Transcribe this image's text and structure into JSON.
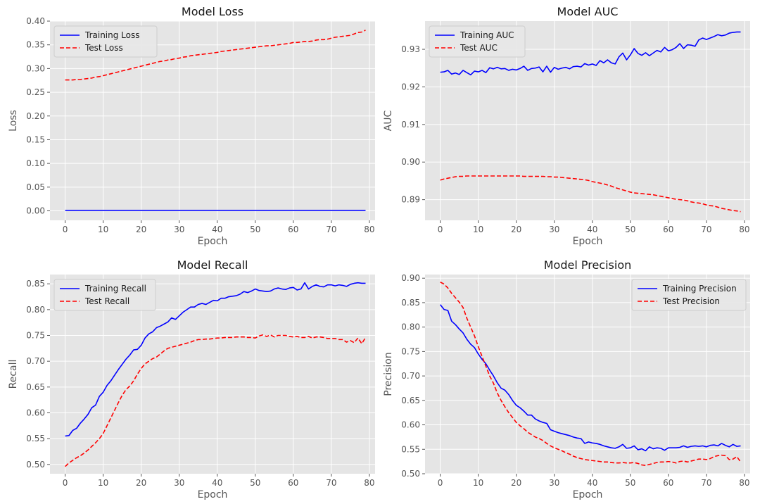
{
  "chart_data": [
    {
      "type": "line",
      "title": "Model Loss",
      "xlabel": "Epoch",
      "ylabel": "Loss",
      "xlim": [
        -4,
        81.5
      ],
      "ylim": [
        -0.02,
        0.4
      ],
      "xticks": [
        0,
        10,
        20,
        30,
        40,
        50,
        60,
        70,
        80
      ],
      "xtick_labels": [
        "0",
        "10",
        "20",
        "30",
        "40",
        "50",
        "60",
        "70",
        "80"
      ],
      "yticks": [
        0.0,
        0.05,
        0.1,
        0.15,
        0.2,
        0.25,
        0.3,
        0.35,
        0.4
      ],
      "ytick_labels": [
        "0.00",
        "0.05",
        "0.10",
        "0.15",
        "0.20",
        "0.25",
        "0.30",
        "0.35",
        "0.40"
      ],
      "legend_position": "upper-left",
      "grid": true,
      "series": [
        {
          "name": "Training Loss",
          "color": "#0000ff",
          "style": "solid",
          "values": [
            0.001,
            0.001,
            0.001,
            0.001,
            0.001,
            0.001,
            0.001,
            0.001,
            0.001,
            0.001,
            0.001,
            0.001,
            0.001,
            0.001,
            0.001,
            0.001,
            0.001,
            0.001,
            0.001,
            0.001,
            0.001,
            0.001,
            0.001,
            0.001,
            0.001,
            0.001,
            0.001,
            0.001,
            0.001,
            0.001,
            0.001,
            0.001,
            0.001,
            0.001,
            0.001,
            0.001,
            0.001,
            0.001,
            0.001,
            0.001,
            0.001,
            0.001,
            0.001,
            0.001,
            0.001,
            0.001,
            0.001,
            0.001,
            0.001,
            0.001,
            0.001,
            0.001,
            0.001,
            0.001,
            0.001,
            0.001,
            0.001,
            0.001,
            0.001,
            0.001,
            0.001,
            0.001,
            0.001,
            0.001,
            0.001,
            0.001,
            0.001,
            0.001,
            0.001,
            0.001,
            0.001,
            0.001,
            0.001,
            0.001,
            0.001,
            0.001,
            0.001,
            0.001,
            0.001,
            0.001
          ]
        },
        {
          "name": "Test Loss",
          "color": "#ff0000",
          "style": "dashed",
          "values": [
            0.276,
            0.276,
            0.276,
            0.277,
            0.277,
            0.278,
            0.279,
            0.28,
            0.282,
            0.283,
            0.285,
            0.287,
            0.289,
            0.291,
            0.293,
            0.295,
            0.297,
            0.299,
            0.301,
            0.303,
            0.305,
            0.307,
            0.309,
            0.311,
            0.313,
            0.315,
            0.316,
            0.318,
            0.319,
            0.321,
            0.322,
            0.324,
            0.325,
            0.327,
            0.328,
            0.329,
            0.33,
            0.331,
            0.332,
            0.333,
            0.334,
            0.336,
            0.337,
            0.338,
            0.339,
            0.34,
            0.341,
            0.342,
            0.343,
            0.344,
            0.345,
            0.346,
            0.347,
            0.348,
            0.348,
            0.349,
            0.35,
            0.351,
            0.352,
            0.353,
            0.355,
            0.355,
            0.356,
            0.357,
            0.357,
            0.358,
            0.36,
            0.361,
            0.361,
            0.362,
            0.364,
            0.366,
            0.367,
            0.368,
            0.369,
            0.37,
            0.373,
            0.376,
            0.377,
            0.381
          ]
        }
      ]
    },
    {
      "type": "line",
      "title": "Model AUC",
      "xlabel": "Epoch",
      "ylabel": "AUC",
      "xlim": [
        -4,
        81.5
      ],
      "ylim": [
        0.8845,
        0.9375
      ],
      "xticks": [
        0,
        10,
        20,
        30,
        40,
        50,
        60,
        70,
        80
      ],
      "xtick_labels": [
        "0",
        "10",
        "20",
        "30",
        "40",
        "50",
        "60",
        "70",
        "80"
      ],
      "yticks": [
        0.89,
        0.9,
        0.91,
        0.92,
        0.93
      ],
      "ytick_labels": [
        "0.89",
        "0.90",
        "0.91",
        "0.92",
        "0.93"
      ],
      "legend_position": "upper-left",
      "grid": true,
      "series": [
        {
          "name": "Training AUC",
          "color": "#0000ff",
          "style": "solid",
          "values": [
            0.9239,
            0.924,
            0.9244,
            0.9234,
            0.9237,
            0.9233,
            0.9244,
            0.9238,
            0.9232,
            0.9242,
            0.924,
            0.9244,
            0.9238,
            0.9251,
            0.9248,
            0.9252,
            0.9248,
            0.9249,
            0.9244,
            0.9247,
            0.9245,
            0.9249,
            0.9255,
            0.9244,
            0.9249,
            0.925,
            0.9253,
            0.924,
            0.9255,
            0.9239,
            0.9252,
            0.9247,
            0.925,
            0.9252,
            0.9248,
            0.9254,
            0.9255,
            0.9253,
            0.9262,
            0.9258,
            0.9261,
            0.9257,
            0.927,
            0.9264,
            0.9272,
            0.9264,
            0.9261,
            0.928,
            0.929,
            0.9272,
            0.9285,
            0.9302,
            0.9289,
            0.9284,
            0.9291,
            0.9283,
            0.929,
            0.9297,
            0.9293,
            0.9305,
            0.9296,
            0.9299,
            0.9305,
            0.9315,
            0.9302,
            0.9312,
            0.9311,
            0.9308,
            0.9325,
            0.933,
            0.9326,
            0.933,
            0.9334,
            0.9339,
            0.9336,
            0.9338,
            0.9343,
            0.9345,
            0.9346,
            0.9346
          ]
        },
        {
          "name": "Test AUC",
          "color": "#ff0000",
          "style": "dashed",
          "values": [
            0.8952,
            0.8955,
            0.8957,
            0.8959,
            0.8961,
            0.8962,
            0.8962,
            0.8963,
            0.8963,
            0.8963,
            0.8963,
            0.8963,
            0.8963,
            0.8963,
            0.8963,
            0.8963,
            0.8963,
            0.8963,
            0.8963,
            0.8963,
            0.8963,
            0.8963,
            0.8962,
            0.8962,
            0.8962,
            0.8962,
            0.8962,
            0.8962,
            0.8961,
            0.8961,
            0.896,
            0.896,
            0.8959,
            0.8958,
            0.8957,
            0.8956,
            0.8955,
            0.8954,
            0.8953,
            0.8951,
            0.8948,
            0.8946,
            0.8944,
            0.8942,
            0.8939,
            0.8936,
            0.8932,
            0.8929,
            0.8926,
            0.8923,
            0.892,
            0.8918,
            0.8917,
            0.8916,
            0.8915,
            0.8914,
            0.8913,
            0.8911,
            0.8909,
            0.8907,
            0.8905,
            0.8903,
            0.8901,
            0.89,
            0.8899,
            0.8897,
            0.8894,
            0.8892,
            0.8891,
            0.8889,
            0.8886,
            0.8884,
            0.8883,
            0.888,
            0.8877,
            0.8875,
            0.8873,
            0.8871,
            0.887,
            0.8868
          ]
        }
      ]
    },
    {
      "type": "line",
      "title": "Model Recall",
      "xlabel": "Epoch",
      "ylabel": "Recall",
      "xlim": [
        -4,
        81.5
      ],
      "ylim": [
        0.482,
        0.868
      ],
      "xticks": [
        0,
        10,
        20,
        30,
        40,
        50,
        60,
        70,
        80
      ],
      "xtick_labels": [
        "0",
        "10",
        "20",
        "30",
        "40",
        "50",
        "60",
        "70",
        "80"
      ],
      "yticks": [
        0.5,
        0.55,
        0.6,
        0.65,
        0.7,
        0.75,
        0.8,
        0.85
      ],
      "ytick_labels": [
        "0.50",
        "0.55",
        "0.60",
        "0.65",
        "0.70",
        "0.75",
        "0.80",
        "0.85"
      ],
      "legend_position": "upper-left",
      "grid": true,
      "series": [
        {
          "name": "Training Recall",
          "color": "#0000ff",
          "style": "solid",
          "values": [
            0.555,
            0.556,
            0.566,
            0.57,
            0.58,
            0.588,
            0.597,
            0.61,
            0.615,
            0.632,
            0.64,
            0.653,
            0.662,
            0.673,
            0.684,
            0.694,
            0.704,
            0.712,
            0.722,
            0.723,
            0.731,
            0.745,
            0.753,
            0.757,
            0.765,
            0.768,
            0.772,
            0.776,
            0.784,
            0.781,
            0.788,
            0.795,
            0.8,
            0.805,
            0.805,
            0.81,
            0.812,
            0.81,
            0.814,
            0.818,
            0.817,
            0.822,
            0.822,
            0.825,
            0.826,
            0.827,
            0.83,
            0.835,
            0.833,
            0.836,
            0.84,
            0.837,
            0.836,
            0.835,
            0.836,
            0.84,
            0.842,
            0.84,
            0.839,
            0.842,
            0.843,
            0.838,
            0.84,
            0.852,
            0.84,
            0.845,
            0.848,
            0.845,
            0.844,
            0.848,
            0.848,
            0.846,
            0.848,
            0.847,
            0.845,
            0.849,
            0.851,
            0.852,
            0.851,
            0.851
          ]
        },
        {
          "name": "Test Recall",
          "color": "#ff0000",
          "style": "dashed",
          "values": [
            0.496,
            0.503,
            0.508,
            0.513,
            0.517,
            0.522,
            0.528,
            0.535,
            0.542,
            0.55,
            0.56,
            0.575,
            0.59,
            0.605,
            0.62,
            0.634,
            0.645,
            0.652,
            0.662,
            0.675,
            0.686,
            0.695,
            0.7,
            0.705,
            0.708,
            0.714,
            0.72,
            0.725,
            0.727,
            0.729,
            0.731,
            0.733,
            0.735,
            0.737,
            0.74,
            0.742,
            0.742,
            0.743,
            0.743,
            0.744,
            0.745,
            0.745,
            0.746,
            0.746,
            0.746,
            0.747,
            0.747,
            0.747,
            0.746,
            0.746,
            0.745,
            0.749,
            0.751,
            0.748,
            0.751,
            0.747,
            0.75,
            0.75,
            0.75,
            0.748,
            0.747,
            0.748,
            0.746,
            0.746,
            0.748,
            0.745,
            0.747,
            0.747,
            0.746,
            0.744,
            0.744,
            0.744,
            0.742,
            0.742,
            0.737,
            0.74,
            0.736,
            0.745,
            0.734,
            0.746
          ]
        }
      ]
    },
    {
      "type": "line",
      "title": "Model Precision",
      "xlabel": "Epoch",
      "ylabel": "Precision",
      "xlim": [
        -4,
        81.5
      ],
      "ylim": [
        0.5,
        0.9075
      ],
      "xticks": [
        0,
        10,
        20,
        30,
        40,
        50,
        60,
        70,
        80
      ],
      "xtick_labels": [
        "0",
        "10",
        "20",
        "30",
        "40",
        "50",
        "60",
        "70",
        "80"
      ],
      "yticks": [
        0.5,
        0.55,
        0.6,
        0.65,
        0.7,
        0.75,
        0.8,
        0.85,
        0.9
      ],
      "ytick_labels": [
        "0.50",
        "0.55",
        "0.60",
        "0.65",
        "0.70",
        "0.75",
        "0.80",
        "0.85",
        "0.90"
      ],
      "legend_position": "upper-right",
      "grid": true,
      "series": [
        {
          "name": "Training Precision",
          "color": "#0000ff",
          "style": "solid",
          "values": [
            0.846,
            0.836,
            0.834,
            0.812,
            0.805,
            0.796,
            0.788,
            0.775,
            0.765,
            0.758,
            0.745,
            0.734,
            0.725,
            0.712,
            0.7,
            0.686,
            0.675,
            0.671,
            0.662,
            0.65,
            0.64,
            0.635,
            0.628,
            0.62,
            0.62,
            0.612,
            0.608,
            0.605,
            0.603,
            0.59,
            0.587,
            0.584,
            0.582,
            0.58,
            0.578,
            0.575,
            0.573,
            0.572,
            0.562,
            0.565,
            0.563,
            0.562,
            0.56,
            0.557,
            0.555,
            0.553,
            0.552,
            0.555,
            0.56,
            0.552,
            0.553,
            0.557,
            0.549,
            0.551,
            0.547,
            0.555,
            0.551,
            0.553,
            0.552,
            0.548,
            0.553,
            0.553,
            0.553,
            0.554,
            0.557,
            0.554,
            0.556,
            0.557,
            0.556,
            0.557,
            0.555,
            0.558,
            0.559,
            0.557,
            0.562,
            0.558,
            0.555,
            0.56,
            0.556,
            0.557
          ]
        },
        {
          "name": "Test Precision",
          "color": "#ff0000",
          "style": "dashed",
          "values": [
            0.892,
            0.888,
            0.88,
            0.869,
            0.86,
            0.851,
            0.84,
            0.818,
            0.8,
            0.782,
            0.76,
            0.74,
            0.72,
            0.7,
            0.685,
            0.665,
            0.65,
            0.637,
            0.625,
            0.615,
            0.605,
            0.598,
            0.592,
            0.585,
            0.58,
            0.575,
            0.572,
            0.568,
            0.562,
            0.557,
            0.553,
            0.55,
            0.547,
            0.543,
            0.54,
            0.536,
            0.533,
            0.531,
            0.529,
            0.528,
            0.527,
            0.526,
            0.525,
            0.524,
            0.524,
            0.523,
            0.522,
            0.522,
            0.523,
            0.522,
            0.522,
            0.523,
            0.521,
            0.518,
            0.517,
            0.519,
            0.521,
            0.523,
            0.524,
            0.524,
            0.525,
            0.524,
            0.522,
            0.525,
            0.526,
            0.524,
            0.526,
            0.528,
            0.53,
            0.53,
            0.529,
            0.531,
            0.535,
            0.537,
            0.538,
            0.537,
            0.529,
            0.53,
            0.535,
            0.524
          ]
        }
      ]
    }
  ]
}
